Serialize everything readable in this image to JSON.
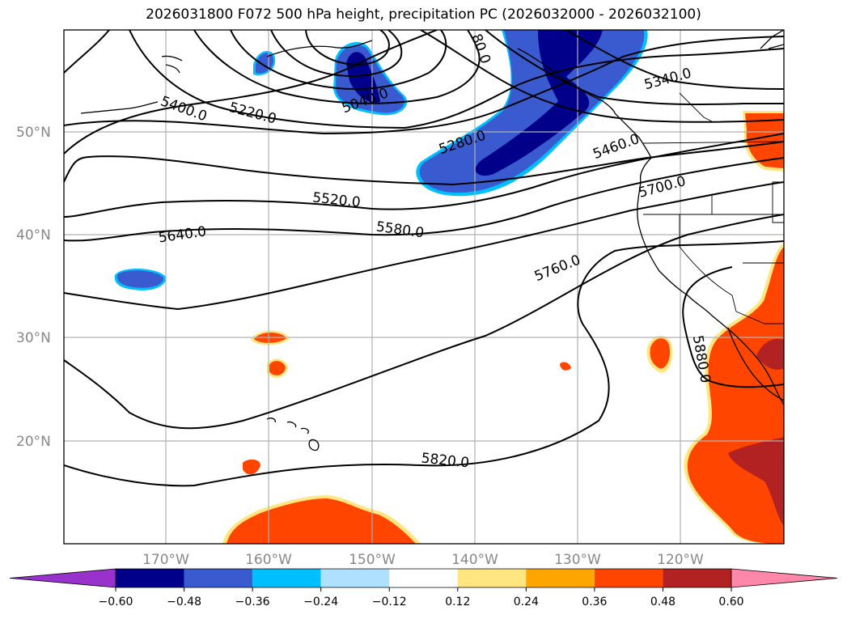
{
  "title": "2026031800 F072 500 hPa height, precipitation PC (2026032000 - 2026032100)",
  "map": {
    "lat_labels": [
      "50°N",
      "40°N",
      "30°N",
      "20°N"
    ],
    "lon_labels": [
      "170°W",
      "160°W",
      "150°W",
      "140°W",
      "130°W",
      "120°W"
    ],
    "contour_labels": [
      "5040.0",
      "5220.0",
      "5400.0",
      "5280.0",
      "5340.0",
      "5460.0",
      "5520.0",
      "5580.0",
      "5640.0",
      "5700.0",
      "5760.0",
      "5820.0",
      "5880.0",
      "80.0"
    ],
    "colors": {
      "neg_strong": "#00008b",
      "neg_mid": "#3a5bd0",
      "neg_light": "#00bfff",
      "pos_mid": "#ff4500",
      "pos_strong": "#b22222",
      "pos_light": "#ffe680"
    }
  },
  "colorbar": {
    "ticks": [
      "−0.60",
      "−0.48",
      "−0.36",
      "−0.24",
      "−0.12",
      "0.12",
      "0.24",
      "0.36",
      "0.48",
      "0.60"
    ],
    "colors": [
      "#9932cc",
      "#00008b",
      "#3a5bd0",
      "#00bfff",
      "#b0e0ff",
      "#ffffff",
      "#ffe680",
      "#ffa500",
      "#ff4500",
      "#b22222",
      "#ff88aa"
    ]
  }
}
